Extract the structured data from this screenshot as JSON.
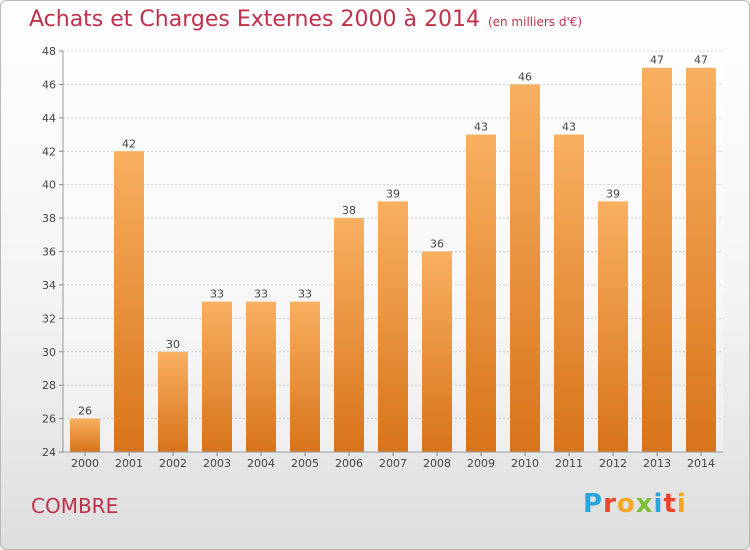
{
  "header": {
    "title": "Achats et Charges Externes 2000 à 2014",
    "unit": "(en milliers d'€)"
  },
  "footer": {
    "commune": "COMBRE",
    "logo_text": "Proxiti",
    "logo_colors": [
      "#2aa5de",
      "#e8462a",
      "#f5a623",
      "#7cbf3a",
      "#2aa5de",
      "#e8462a",
      "#f5a623"
    ]
  },
  "chart_data": {
    "type": "bar",
    "categories": [
      "2000",
      "2001",
      "2002",
      "2003",
      "2004",
      "2005",
      "2006",
      "2007",
      "2008",
      "2009",
      "2010",
      "2011",
      "2012",
      "2013",
      "2014"
    ],
    "values": [
      26,
      42,
      30,
      33,
      33,
      33,
      38,
      39,
      36,
      43,
      46,
      43,
      39,
      47,
      47
    ],
    "ylim": [
      24,
      48
    ],
    "yticks": [
      24,
      26,
      28,
      30,
      32,
      34,
      36,
      38,
      40,
      42,
      44,
      46,
      48
    ],
    "grid": true,
    "bar_color": "#f0902a",
    "bar_color_light": "#f8b060",
    "bar_color_dark": "#d8741a"
  }
}
